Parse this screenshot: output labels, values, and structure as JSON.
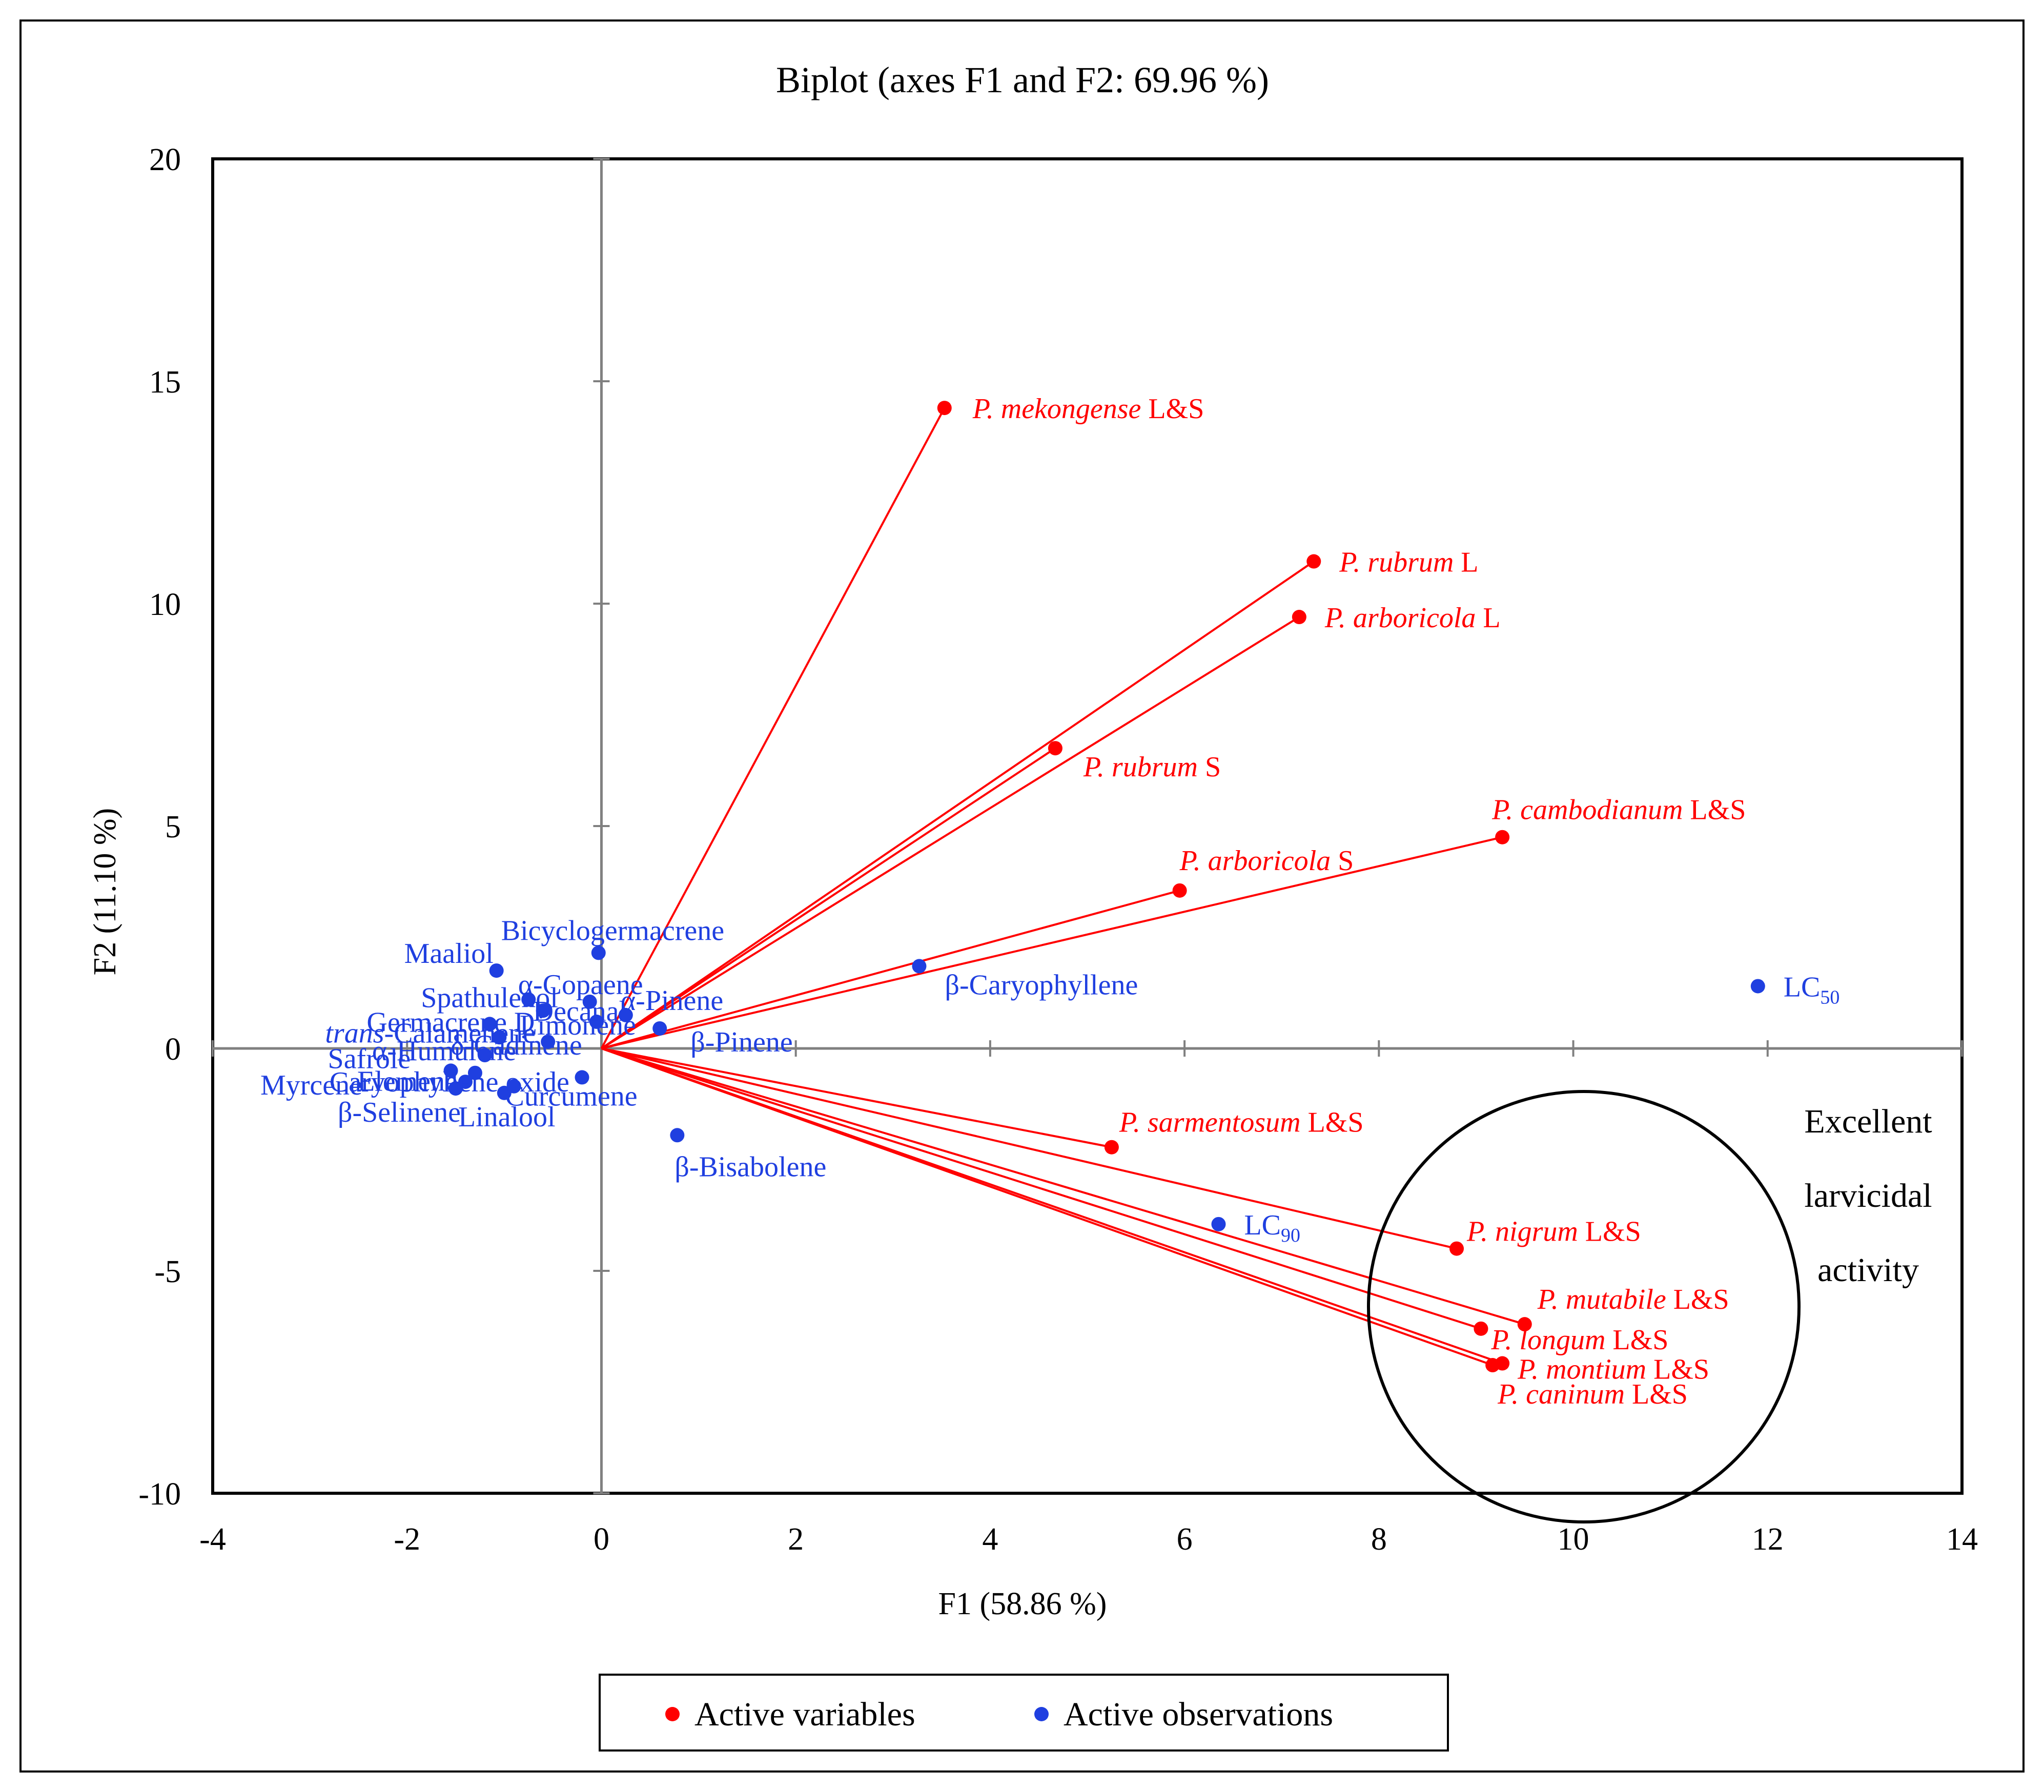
{
  "chart_data": {
    "type": "scatter",
    "title": "Biplot (axes F1 and F2: 69.96 %)",
    "xlabel": "F1 (58.86 %)",
    "ylabel": "F2 (11.10 %)",
    "xlim": [
      -4,
      14
    ],
    "ylim": [
      -10,
      20
    ],
    "x_ticks": [
      -4,
      -2,
      0,
      2,
      4,
      6,
      8,
      10,
      12,
      14
    ],
    "y_ticks": [
      -10,
      -5,
      0,
      5,
      10,
      15,
      20
    ],
    "grid": false,
    "legend_position": "bottom",
    "colors": {
      "variables": "#ff0000",
      "observations": "#1f3fe0",
      "axis": "#808080"
    },
    "legend": [
      {
        "name": "Active variables",
        "color": "#ff0000"
      },
      {
        "name": "Active observations",
        "color": "#1f3fe0"
      }
    ],
    "variables": [
      {
        "italic": "P. mekongense",
        "suffix": " L&S",
        "x": 3.53,
        "y": 14.4
      },
      {
        "italic": "P. rubrum",
        "suffix": " L",
        "x": 7.33,
        "y": 10.95
      },
      {
        "italic": "P. arboricola",
        "suffix": " L",
        "x": 7.18,
        "y": 9.7
      },
      {
        "italic": "P. rubrum",
        "suffix": " S",
        "x": 4.67,
        "y": 6.75
      },
      {
        "italic": "P. cambodianum",
        "suffix": " L&S",
        "x": 9.27,
        "y": 4.75
      },
      {
        "italic": "P. arboricola",
        "suffix": " S",
        "x": 5.95,
        "y": 3.55
      },
      {
        "italic": "P. sarmentosum",
        "suffix": " L&S",
        "x": 5.25,
        "y": -2.22
      },
      {
        "italic": "P. nigrum",
        "suffix": " L&S",
        "x": 8.8,
        "y": -4.5
      },
      {
        "italic": "P. mutabile",
        "suffix": " L&S",
        "x": 9.5,
        "y": -6.2
      },
      {
        "italic": "P. longum",
        "suffix": " L&S",
        "x": 9.05,
        "y": -6.3
      },
      {
        "italic": "P. montium",
        "suffix": " L&S",
        "x": 9.27,
        "y": -7.08
      },
      {
        "italic": "P. caninum",
        "suffix": " L&S",
        "x": 9.17,
        "y": -7.12
      }
    ],
    "observations": [
      {
        "label": "LC",
        "sub": "50",
        "x": 11.9,
        "y": 1.4
      },
      {
        "label": "LC",
        "sub": "90",
        "x": 6.35,
        "y": -3.95
      },
      {
        "label": "β-Caryophyllene",
        "x": 3.27,
        "y": 1.85
      },
      {
        "label": "β-Pinene",
        "x": 0.6,
        "y": 0.45
      },
      {
        "label": "β-Bisabolene",
        "x": 0.78,
        "y": -1.95
      },
      {
        "label": "Bicyclogermacrene",
        "x": -0.03,
        "y": 2.15
      },
      {
        "label": "Maaliol",
        "x": -1.08,
        "y": 1.75
      },
      {
        "label": "α-Copaene",
        "x": -0.12,
        "y": 1.05
      },
      {
        "label": "α-Pinene",
        "x": 0.25,
        "y": 0.75
      },
      {
        "label": "Spathulenol",
        "x": -0.75,
        "y": 1.1
      },
      {
        "label": "Decanal",
        "x": -0.6,
        "y": 0.85
      },
      {
        "label": "Limonene",
        "x": -0.05,
        "y": 0.6
      },
      {
        "label": "Germacrene D",
        "x": -1.15,
        "y": 0.55
      },
      {
        "label": "Calamenene",
        "italic_prefix": "trans",
        "x": -1.05,
        "y": 0.25
      },
      {
        "label": "δ-Cadinene",
        "x": -0.55,
        "y": 0.15
      },
      {
        "label": "Curcumene",
        "x": -0.2,
        "y": -0.65
      },
      {
        "label": "α-Humulene",
        "x": -1.2,
        "y": -0.15
      },
      {
        "label": "Caryophyllene oxide",
        "x": -0.9,
        "y": -0.85
      },
      {
        "label": "Linalool",
        "x": -1.0,
        "y": -1.0
      },
      {
        "label": "β-Selinene",
        "x": -1.5,
        "y": -0.9
      },
      {
        "label": "Myrcene",
        "x": -1.4,
        "y": -0.75
      },
      {
        "label": "Elemene",
        "x": -1.3,
        "y": -0.55
      },
      {
        "label": "Safrole",
        "x": -1.55,
        "y": -0.5
      }
    ],
    "annotation": [
      "Excellent",
      "larvicidal",
      "activity"
    ]
  }
}
